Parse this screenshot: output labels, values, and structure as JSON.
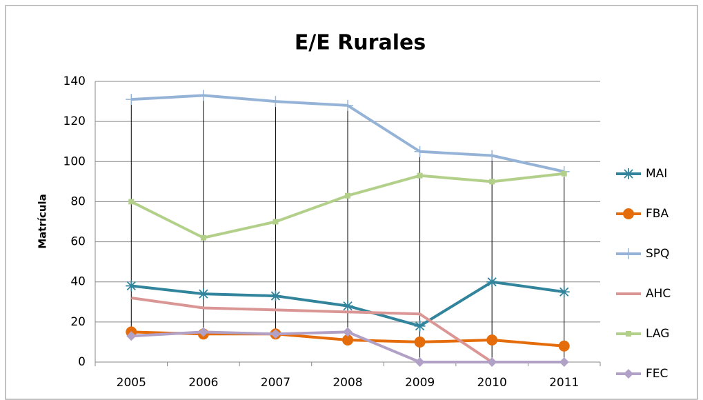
{
  "chart_data": {
    "type": "line",
    "title": "E/E Rurales",
    "y_label": "Matrícula",
    "categories": [
      "2005",
      "2006",
      "2007",
      "2008",
      "2009",
      "2010",
      "2011"
    ],
    "series": [
      {
        "name": "MAI",
        "color": "#31849b",
        "marker": "star",
        "values": [
          38,
          34,
          33,
          28,
          18,
          40,
          35
        ]
      },
      {
        "name": "FBA",
        "color": "#e46c0a",
        "marker": "circle",
        "values": [
          15,
          14,
          14,
          11,
          10,
          11,
          8
        ]
      },
      {
        "name": "SPQ",
        "color": "#95b3d7",
        "marker": "plus",
        "values": [
          131,
          133,
          130,
          128,
          105,
          103,
          95
        ]
      },
      {
        "name": "AHC",
        "color": "#d99694",
        "marker": "none",
        "values": [
          32,
          27,
          26,
          25,
          24,
          0,
          0
        ]
      },
      {
        "name": "LAG",
        "color": "#b3d08b",
        "marker": "square",
        "values": [
          80,
          62,
          70,
          83,
          93,
          90,
          94
        ]
      },
      {
        "name": "FEC",
        "color": "#b2a1c7",
        "marker": "diamond",
        "values": [
          13,
          15,
          14,
          15,
          0,
          0,
          0
        ]
      }
    ],
    "ylim": [
      0,
      140
    ],
    "yticks": [
      0,
      20,
      40,
      60,
      80,
      100,
      120,
      140
    ],
    "grid": true,
    "high_low_lines": true,
    "legend": "right"
  }
}
